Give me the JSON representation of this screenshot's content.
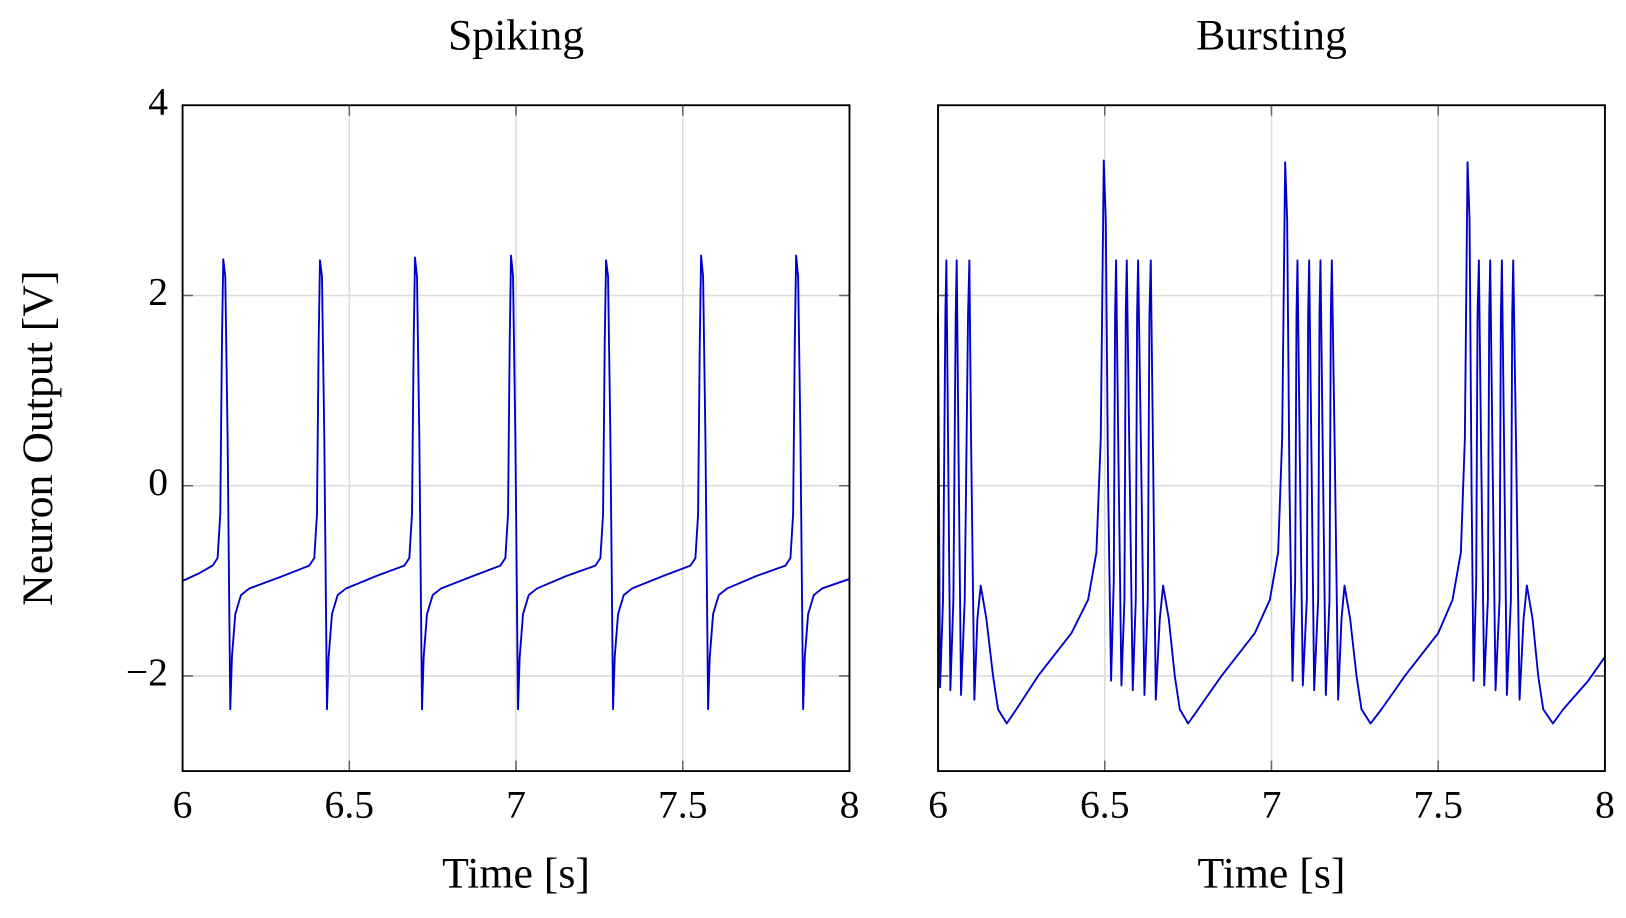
{
  "chart_data": [
    {
      "type": "line",
      "title": "Spiking",
      "xlabel": "Time [s]",
      "ylabel": "Neuron Output [V]",
      "color": "#0000cc",
      "xlim": [
        6,
        8
      ],
      "ylim": [
        -3,
        4
      ],
      "xticks": [
        6,
        6.5,
        7,
        7.5,
        8
      ],
      "yticks": [
        {
          "value": -2,
          "label": "−2"
        },
        0,
        2,
        4
      ],
      "grid": true,
      "x": [
        6.0,
        6.05,
        6.09,
        6.105,
        6.113,
        6.118,
        6.122,
        6.128,
        6.135,
        6.143,
        6.148,
        6.158,
        6.175,
        6.2,
        6.3,
        6.38,
        6.395,
        6.403,
        6.408,
        6.412,
        6.418,
        6.425,
        6.433,
        6.438,
        6.448,
        6.465,
        6.49,
        6.58,
        6.665,
        6.68,
        6.688,
        6.693,
        6.697,
        6.703,
        6.71,
        6.718,
        6.723,
        6.733,
        6.75,
        6.775,
        6.87,
        6.953,
        6.968,
        6.976,
        6.981,
        6.985,
        6.991,
        6.998,
        7.006,
        7.011,
        7.021,
        7.038,
        7.063,
        7.15,
        7.238,
        7.253,
        7.261,
        7.266,
        7.27,
        7.276,
        7.283,
        7.291,
        7.296,
        7.306,
        7.323,
        7.348,
        7.44,
        7.523,
        7.538,
        7.546,
        7.551,
        7.555,
        7.561,
        7.568,
        7.576,
        7.581,
        7.591,
        7.608,
        7.633,
        7.72,
        7.808,
        7.823,
        7.831,
        7.836,
        7.84,
        7.846,
        7.853,
        7.861,
        7.866,
        7.876,
        7.893,
        7.918,
        8.0
      ],
      "values": [
        -1.0,
        -0.92,
        -0.84,
        -0.76,
        -0.3,
        1.5,
        2.38,
        2.2,
        0.5,
        -2.35,
        -1.8,
        -1.35,
        -1.15,
        -1.08,
        -0.95,
        -0.84,
        -0.76,
        -0.3,
        1.5,
        2.37,
        2.2,
        0.5,
        -2.35,
        -1.8,
        -1.35,
        -1.15,
        -1.08,
        -0.95,
        -0.84,
        -0.76,
        -0.3,
        1.5,
        2.4,
        2.2,
        0.5,
        -2.35,
        -1.8,
        -1.35,
        -1.15,
        -1.08,
        -0.95,
        -0.84,
        -0.76,
        -0.3,
        1.5,
        2.42,
        2.2,
        0.5,
        -2.35,
        -1.8,
        -1.35,
        -1.15,
        -1.08,
        -0.95,
        -0.84,
        -0.76,
        -0.3,
        1.5,
        2.37,
        2.2,
        0.5,
        -2.35,
        -1.8,
        -1.35,
        -1.15,
        -1.08,
        -0.95,
        -0.84,
        -0.76,
        -0.3,
        1.5,
        2.42,
        2.2,
        0.5,
        -2.35,
        -1.8,
        -1.35,
        -1.15,
        -1.08,
        -0.95,
        -0.84,
        -0.76,
        -0.3,
        1.5,
        2.42,
        2.2,
        0.5,
        -2.35,
        -1.8,
        -1.35,
        -1.15,
        -1.08,
        -0.98
      ]
    },
    {
      "type": "line",
      "title": "Bursting",
      "xlabel": "Time [s]",
      "color": "#0000cc",
      "xlim": [
        6,
        8
      ],
      "ylim": [
        -3,
        4
      ],
      "xticks": [
        6,
        6.5,
        7,
        7.5,
        8
      ],
      "sharey": true,
      "grid": true,
      "x": [
        6.0,
        6.006,
        6.015,
        6.022,
        6.025,
        6.03,
        6.037,
        6.046,
        6.053,
        6.056,
        6.061,
        6.069,
        6.08,
        6.09,
        6.094,
        6.099,
        6.109,
        6.118,
        6.128,
        6.145,
        6.165,
        6.18,
        6.206,
        6.235,
        6.3,
        6.4,
        6.45,
        6.475,
        6.488,
        6.497,
        6.503,
        6.51,
        6.519,
        6.527,
        6.531,
        6.534,
        6.541,
        6.55,
        6.559,
        6.563,
        6.566,
        6.574,
        6.584,
        6.593,
        6.597,
        6.6,
        6.609,
        6.619,
        6.629,
        6.634,
        6.638,
        6.645,
        6.653,
        6.665,
        6.675,
        6.692,
        6.71,
        6.725,
        6.75,
        6.78,
        6.85,
        6.95,
        6.995,
        7.02,
        7.032,
        7.041,
        7.047,
        7.054,
        7.063,
        7.071,
        7.075,
        7.078,
        7.085,
        7.094,
        7.106,
        7.11,
        7.113,
        7.12,
        7.128,
        7.14,
        7.144,
        7.147,
        7.154,
        7.163,
        7.174,
        7.178,
        7.181,
        7.19,
        7.2,
        7.21,
        7.219,
        7.236,
        7.255,
        7.27,
        7.297,
        7.33,
        7.4,
        7.5,
        7.543,
        7.568,
        7.58,
        7.588,
        7.594,
        7.6,
        7.606,
        7.614,
        7.618,
        7.622,
        7.629,
        7.638,
        7.649,
        7.653,
        7.656,
        7.663,
        7.672,
        7.684,
        7.688,
        7.691,
        7.698,
        7.706,
        7.718,
        7.722,
        7.725,
        7.734,
        7.744,
        7.756,
        7.766,
        7.783,
        7.8,
        7.815,
        7.844,
        7.875,
        7.95,
        8.0
      ],
      "values": [
        1.8,
        -2.12,
        -1.2,
        1.8,
        2.37,
        0.5,
        -2.15,
        -1.2,
        1.8,
        2.37,
        0.5,
        -2.2,
        -1.2,
        1.8,
        2.37,
        0.5,
        -2.25,
        -1.4,
        -1.05,
        -1.4,
        -2.0,
        -2.35,
        -2.5,
        -2.35,
        -2.0,
        -1.55,
        -1.2,
        -0.7,
        0.5,
        3.42,
        2.8,
        0.0,
        -2.05,
        -1.0,
        1.8,
        2.37,
        0.3,
        -2.1,
        -1.2,
        1.8,
        2.37,
        0.3,
        -2.15,
        -1.2,
        1.8,
        2.37,
        0.3,
        -2.2,
        -1.2,
        1.8,
        2.37,
        0.3,
        -2.25,
        -1.4,
        -1.05,
        -1.4,
        -2.0,
        -2.35,
        -2.5,
        -2.35,
        -2.0,
        -1.55,
        -1.2,
        -0.7,
        0.5,
        3.4,
        2.8,
        0.0,
        -2.05,
        -1.0,
        1.8,
        2.37,
        0.3,
        -2.1,
        -1.2,
        1.8,
        2.37,
        0.3,
        -2.15,
        -1.2,
        1.8,
        2.37,
        0.3,
        -2.2,
        -1.2,
        1.8,
        2.37,
        0.3,
        -2.25,
        -1.4,
        -1.05,
        -1.4,
        -2.0,
        -2.35,
        -2.5,
        -2.35,
        -2.0,
        -1.55,
        -1.2,
        -0.7,
        0.5,
        3.4,
        2.8,
        0.0,
        -2.05,
        -1.0,
        1.8,
        2.37,
        0.3,
        -2.1,
        -1.2,
        1.8,
        2.37,
        0.3,
        -2.15,
        -1.2,
        1.8,
        2.37,
        0.3,
        -2.2,
        -1.2,
        1.8,
        2.37,
        0.3,
        -2.25,
        -1.4,
        -1.05,
        -1.4,
        -2.0,
        -2.35,
        -2.5,
        -2.35,
        -2.05,
        -1.8
      ]
    }
  ]
}
